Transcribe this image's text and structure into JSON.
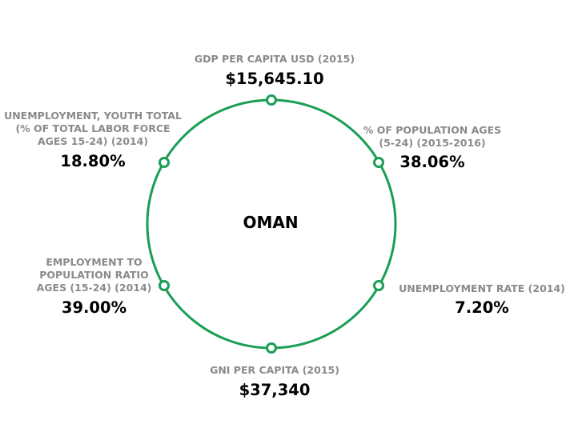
{
  "center": {
    "title": "OMAN"
  },
  "colors": {
    "ring": "#1a9e54",
    "label": "#8a8a8a",
    "value": "#000000"
  },
  "stats": {
    "gdp": {
      "label": "GDP PER CAPITA USD (2015)",
      "value": "$15,645.10"
    },
    "pop": {
      "label": "% OF POPULATION AGES\n(5-24) (2015-2016)",
      "value": "38.06%"
    },
    "unemp": {
      "label": "UNEMPLOYMENT RATE (2014)",
      "value": "7.20%"
    },
    "gni": {
      "label": "GNI PER CAPITA (2015)",
      "value": "$37,340"
    },
    "emp": {
      "label": "EMPLOYMENT TO\nPOPULATION RATIO\nAGES (15-24) (2014)",
      "value": "39.00%"
    },
    "youth": {
      "label": "UNEMPLOYMENT, YOUTH TOTAL\n(% OF TOTAL LABOR FORCE\nAGES 15-24) (2014)",
      "value": "18.80%"
    }
  }
}
